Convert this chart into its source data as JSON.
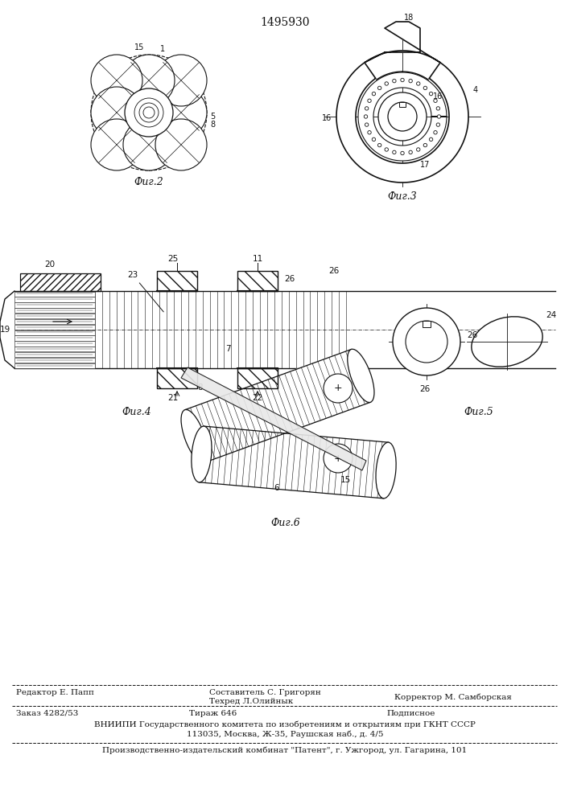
{
  "patent_number": "1495930",
  "fig2_label": "Фиг.2",
  "fig3_label": "Фиг.3",
  "fig4_label": "Фиг.4",
  "fig5_label": "Фиг.5",
  "fig6_label": "Фиг.6",
  "footer_line1_left": "Редактор Е. Папп",
  "footer_sestavitel": "Составитель С. Григорян",
  "footer_tekhred": "Техред Л.Олийнык",
  "footer_korrektor": "Корректор М. Самборская",
  "footer_zakaz": "Заказ 4282/53",
  "footer_tirazh": "Тираж 646",
  "footer_podpisnoe": "Подписное",
  "footer_vniipи": "ВНИИПИ Государственного комитета по изобретениям и открытиям при ГКНТ СССР",
  "footer_addr": "113035, Москва, Ж-35, Раушская наб., д. 4/5",
  "footer_patent": "Производственно-издательский комбинат \"Патент\", г. Ужгород, ул. Гагарина, 101",
  "line_color": "#111111"
}
